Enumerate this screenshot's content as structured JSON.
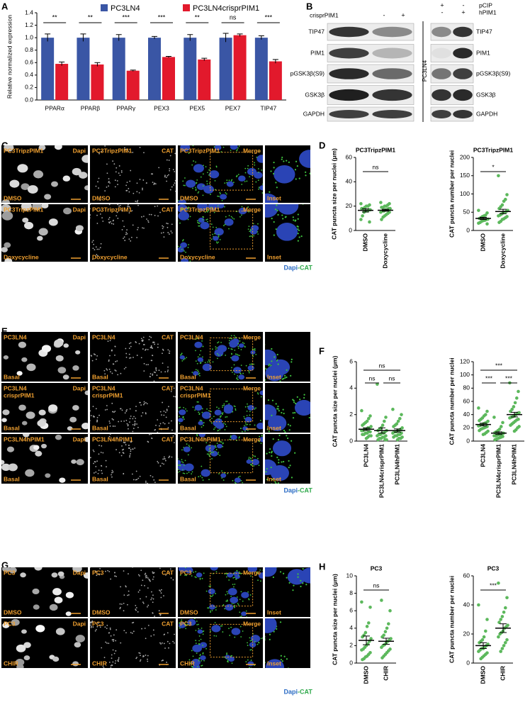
{
  "panels": {
    "A": {
      "label": "A",
      "type": "bar",
      "ylabel": "Relative normalized expression",
      "categories": [
        "PPARα",
        "PPARβ",
        "PPARγ",
        "PEX3",
        "PEX5",
        "PEX7",
        "TIP47"
      ],
      "series": [
        {
          "name": "PC3LN4",
          "color": "#3a56a5",
          "values": [
            1.0,
            1.0,
            1.0,
            1.0,
            1.0,
            1.0,
            1.0
          ],
          "errors": [
            0.06,
            0.06,
            0.05,
            0.02,
            0.05,
            0.07,
            0.03
          ]
        },
        {
          "name": "PC3LN4crisprPIM1",
          "color": "#e2192c",
          "values": [
            0.58,
            0.57,
            0.47,
            0.69,
            0.65,
            1.04,
            0.62
          ],
          "errors": [
            0.03,
            0.03,
            0.01,
            0.01,
            0.02,
            0.02,
            0.03
          ]
        }
      ],
      "significance": [
        "**",
        "**",
        "***",
        "***",
        "**",
        "ns",
        "***"
      ],
      "ylim": [
        0,
        1.4
      ],
      "yticks": [
        {
          "value": 0,
          "label": "0.0"
        },
        0.2,
        0.4,
        0.6,
        0.8,
        {
          "value": 1,
          "label": "1.0"
        },
        1.2,
        1.4
      ]
    },
    "B": {
      "label": "B",
      "left": {
        "header": "crisprPIM1",
        "lanes": [
          "-",
          "+"
        ],
        "rows": [
          "TIP47",
          "PIM1",
          "pGSK3β(S9)",
          "GSK3β",
          "GAPDH"
        ]
      },
      "side_label": "PC3LN4",
      "right": {
        "headers": [
          {
            "label": "pCIP",
            "lanes": [
              "+",
              "-"
            ]
          },
          {
            "label": "hPIM1",
            "lanes": [
              "-",
              "+"
            ]
          }
        ],
        "rows": [
          "TIP47",
          "PIM1",
          "pGSK3β(S9)",
          "GSK3β",
          "GAPDH"
        ]
      }
    },
    "C": {
      "label": "C",
      "caption": [
        "Dapi",
        "-CAT"
      ],
      "rows": [
        [
          {
            "top_left": [
              "PC3TripzPIM1"
            ],
            "top_right": "Dapi",
            "bottom_left": "DMSO"
          },
          {
            "top_left": [
              "PC3TripzPIM1"
            ],
            "top_right": "CAT",
            "bottom_left": "DMSO"
          },
          {
            "top_left": [
              "PC3TripzPIM1"
            ],
            "top_right": "Merge",
            "bottom_left": "DMSO"
          },
          {
            "bottom_left": "Inset"
          }
        ],
        [
          {
            "top_left": [
              "PC3TripzPIM1"
            ],
            "top_right": "Dapi",
            "bottom_left": "Doxycycline"
          },
          {
            "top_left": [
              "PC3TripzPIM1"
            ],
            "top_right": "CAT",
            "bottom_left": "Doxycycline"
          },
          {
            "top_left": [
              "PC3TripzPIM1"
            ],
            "top_right": "Merge",
            "bottom_left": "Doxycycline"
          },
          {
            "bottom_left": "Inset"
          }
        ]
      ]
    },
    "D": {
      "label": "D",
      "plots": [
        {
          "title": "PC3TripzPIM1",
          "ylabel": "CAT puncta size per nuclei (μm)",
          "categories": [
            "DMSO",
            "Doxycycline"
          ],
          "color": "#5cb85c",
          "ylim": [
            0,
            60
          ],
          "yticks": [
            0,
            20,
            40,
            60
          ],
          "groups": [
            {
              "values": [
                22,
                21,
                20,
                20,
                19,
                18,
                18,
                17,
                17,
                16,
                16,
                15,
                12,
                9,
                7
              ],
              "mean": 16.5,
              "sem": 1.3
            },
            {
              "values": [
                23,
                22,
                21,
                20,
                20,
                19,
                19,
                18,
                18,
                17,
                17,
                16,
                16,
                15,
                15,
                14,
                13,
                12,
                11,
                9
              ],
              "mean": 16.6,
              "sem": 0.8
            }
          ],
          "significance": [
            {
              "from": 0,
              "to": 1,
              "label": "ns"
            }
          ]
        },
        {
          "title": "PC3TripzPIM1",
          "ylabel": "CAT puncta number per nuclei",
          "categories": [
            "DMSO",
            "Doxycycline"
          ],
          "color": "#5cb85c",
          "ylim": [
            0,
            200
          ],
          "yticks": [
            0,
            50,
            100,
            150,
            200
          ],
          "groups": [
            {
              "values": [
                55,
                48,
                42,
                40,
                38,
                35,
                33,
                31,
                30,
                28,
                27,
                25,
                22,
                20,
                18
              ],
              "mean": 33,
              "sem": 3
            },
            {
              "values": [
                150,
                98,
                85,
                80,
                70,
                65,
                60,
                55,
                52,
                50,
                48,
                45,
                42,
                40,
                38,
                35,
                32,
                30,
                25,
                22
              ],
              "mean": 52,
              "sem": 6
            }
          ],
          "significance": [
            {
              "from": 0,
              "to": 1,
              "label": "*"
            }
          ]
        }
      ]
    },
    "E": {
      "label": "E",
      "caption": [
        "Dapi",
        "-CAT"
      ],
      "rows": [
        [
          {
            "top_left": [
              "PC3LN4"
            ],
            "top_right": "Dapi",
            "bottom_left": "Basal"
          },
          {
            "top_left": [
              "PC3LN4"
            ],
            "top_right": "CAT",
            "bottom_left": "Basal"
          },
          {
            "top_left": [
              "PC3LN4"
            ],
            "top_right": "Merge",
            "bottom_left": "Basal"
          },
          {
            "bottom_left": "Inset"
          }
        ],
        [
          {
            "top_left": [
              "PC3LN4",
              "crisprPIM1"
            ],
            "top_right": "Dapi",
            "bottom_left": "Basal"
          },
          {
            "top_left": [
              "PC3LN4",
              "crisprPIM1"
            ],
            "top_right": "CAT",
            "bottom_left": "Basal"
          },
          {
            "top_left": [
              "PC3LN4",
              "crisprPIM1"
            ],
            "top_right": "Merge",
            "bottom_left": "Basal"
          },
          {
            "bottom_left": "Inset"
          }
        ],
        [
          {
            "top_left": [
              "PC3LN4hPIM1"
            ],
            "top_right": "Dapi",
            "bottom_left": "Basal"
          },
          {
            "top_left": [
              "PC3LN4hPIM1"
            ],
            "top_right": "CAT",
            "bottom_left": "Basal"
          },
          {
            "top_left": [
              "PC3LN4hPIM1"
            ],
            "top_right": "Merge",
            "bottom_left": "Basal"
          },
          {
            "bottom_left": "Inset"
          }
        ]
      ]
    },
    "F": {
      "label": "F",
      "plots": [
        {
          "ylabel": "CAT puncta size per nuclei (μm)",
          "categories": [
            "PC3LN4",
            "PC3LN4crisprPIM1",
            "PC3LN4hPIM1"
          ],
          "color": "#5cb85c",
          "ylim": [
            0,
            6
          ],
          "yticks": [
            0,
            2,
            4,
            6
          ],
          "groups": [
            {
              "values": [
                2.3,
                1.9,
                1.7,
                1.5,
                1.4,
                1.3,
                1.2,
                1.1,
                1.0,
                1.0,
                0.9,
                0.9,
                0.8,
                0.8,
                0.7,
                0.7,
                0.6,
                0.6,
                0.5,
                0.5,
                0.4,
                0.4,
                0.3,
                0.2
              ],
              "mean": 0.9,
              "sem": 0.1
            },
            {
              "values": [
                4.3,
                1.8,
                1.5,
                1.2,
                1.0,
                0.9,
                0.8,
                0.8,
                0.7,
                0.6,
                0.6,
                0.5,
                0.5,
                0.4,
                0.4,
                0.3,
                0.3,
                0.2,
                0.2,
                0.1,
                0.1,
                0.1
              ],
              "mean": 0.8,
              "sem": 0.2
            },
            {
              "values": [
                2.4,
                2.0,
                1.7,
                1.5,
                1.3,
                1.2,
                1.1,
                1.0,
                0.9,
                0.8,
                0.8,
                0.7,
                0.7,
                0.6,
                0.6,
                0.5,
                0.5,
                0.4,
                0.4,
                0.3,
                0.3,
                0.2,
                0.2,
                0.1
              ],
              "mean": 0.8,
              "sem": 0.12
            }
          ],
          "significance": [
            {
              "from": 0,
              "to": 2,
              "label": "ns"
            },
            {
              "from": 0,
              "to": 1,
              "label": "ns"
            },
            {
              "from": 1,
              "to": 2,
              "label": "ns"
            }
          ]
        },
        {
          "ylabel": "CAT puncta number per nuclei",
          "categories": [
            "PC3LN4",
            "PC3LN4crisprPIM1",
            "PC3LN4hPIM1"
          ],
          "color": "#5cb85c",
          "ylim": [
            0,
            120
          ],
          "yticks": [
            0,
            20,
            40,
            60,
            80,
            100,
            120
          ],
          "groups": [
            {
              "values": [
                50,
                45,
                40,
                38,
                35,
                33,
                31,
                30,
                28,
                27,
                26,
                25,
                24,
                23,
                22,
                21,
                20,
                19,
                18,
                16,
                15,
                13,
                11,
                10
              ],
              "mean": 25,
              "sem": 2
            },
            {
              "values": [
                36,
                28,
                22,
                18,
                16,
                14,
                13,
                12,
                11,
                10,
                10,
                9,
                8,
                8,
                7,
                6,
                5,
                4,
                3,
                2
              ],
              "mean": 12,
              "sem": 2
            },
            {
              "values": [
                88,
                75,
                65,
                58,
                52,
                48,
                45,
                43,
                42,
                40,
                38,
                37,
                36,
                35,
                33,
                32,
                30,
                28,
                26,
                24,
                22,
                20,
                17,
                15
              ],
              "mean": 40,
              "sem": 3.5
            }
          ],
          "significance": [
            {
              "from": 0,
              "to": 2,
              "label": "***"
            },
            {
              "from": 0,
              "to": 1,
              "label": "***"
            },
            {
              "from": 1,
              "to": 2,
              "label": "***"
            }
          ]
        }
      ]
    },
    "G": {
      "label": "G",
      "caption": [
        "Dapi",
        "-CAT"
      ],
      "rows": [
        [
          {
            "top_left": [
              "PC3"
            ],
            "top_right": "Dapi",
            "bottom_left": "DMSO"
          },
          {
            "top_left": [
              "PC3"
            ],
            "top_right": "CAT",
            "bottom_left": "DMSO"
          },
          {
            "top_left": [
              "PC3"
            ],
            "top_right": "Merge",
            "bottom_left": "DMSO"
          },
          {
            "bottom_left": "Inset"
          }
        ],
        [
          {
            "top_left": [
              "PC3"
            ],
            "top_right": "Dapi",
            "bottom_left": "CHIR"
          },
          {
            "top_left": [
              "PC3"
            ],
            "top_right": "CAT",
            "bottom_left": "CHIR"
          },
          {
            "top_left": [
              "PC3"
            ],
            "top_right": "Merge",
            "bottom_left": "CHIR"
          },
          {
            "bottom_left": "Inset"
          }
        ]
      ]
    },
    "H": {
      "label": "H",
      "plots": [
        {
          "title": "PC3",
          "ylabel": "CAT puncta size per nuclei (μm)",
          "categories": [
            "DMSO",
            "CHIR"
          ],
          "color": "#5cb85c",
          "ylim": [
            0,
            10
          ],
          "yticks": [
            0,
            2,
            4,
            6,
            8,
            10
          ],
          "groups": [
            {
              "values": [
                7.0,
                6.4,
                4.6,
                4.2,
                3.5,
                3.2,
                3.0,
                2.8,
                2.5,
                2.2,
                2.0,
                1.8,
                1.6,
                1.5,
                1.2,
                1.0,
                0.8,
                0.7,
                0.5,
                0.4
              ],
              "mean": 2.6,
              "sem": 0.5
            },
            {
              "values": [
                7.2,
                6.0,
                4.5,
                4.0,
                3.6,
                3.2,
                3.0,
                2.8,
                2.6,
                2.5,
                2.3,
                2.1,
                2.0,
                1.8,
                1.6,
                1.4,
                1.2,
                1.0,
                0.8,
                0.6
              ],
              "mean": 2.5,
              "sem": 0.35
            }
          ],
          "significance": [
            {
              "from": 0,
              "to": 1,
              "label": "ns"
            }
          ]
        },
        {
          "title": "PC3",
          "ylabel": "CAT puncta number per nuclei",
          "categories": [
            "DMSO",
            "CHIR"
          ],
          "color": "#5cb85c",
          "ylim": [
            0,
            60
          ],
          "yticks": [
            0,
            20,
            40,
            60
          ],
          "groups": [
            {
              "values": [
                40,
                30,
                22,
                18,
                16,
                15,
                14,
                13,
                12,
                11,
                10,
                10,
                9,
                8,
                7,
                6,
                5,
                4,
                3
              ],
              "mean": 12,
              "sem": 2
            },
            {
              "values": [
                55,
                45,
                38,
                35,
                32,
                30,
                28,
                26,
                25,
                24,
                22,
                21,
                20,
                18,
                16,
                14,
                12,
                10,
                8
              ],
              "mean": 24,
              "sem": 3
            }
          ],
          "significance": [
            {
              "from": 0,
              "to": 1,
              "label": "***"
            }
          ]
        }
      ]
    }
  }
}
